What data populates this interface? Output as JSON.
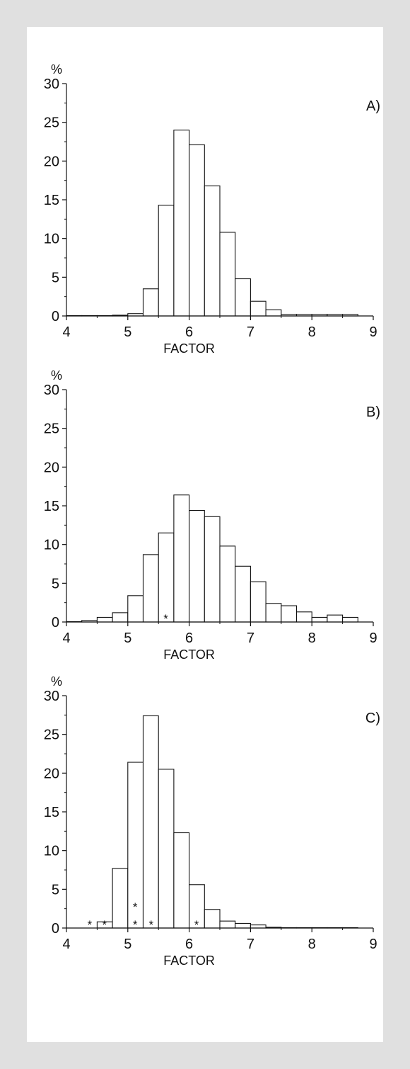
{
  "chart_data": [
    {
      "type": "bar",
      "panel_label": "A)",
      "y_unit_label": "%",
      "xlabel": "FACTOR",
      "xlim": [
        4,
        9
      ],
      "ylim": [
        0,
        30
      ],
      "xticks": [
        4,
        5,
        6,
        7,
        8,
        9
      ],
      "yticks": [
        0,
        5,
        10,
        15,
        20,
        25,
        30
      ],
      "bin_width": 0.25,
      "bins": [
        {
          "x0": 4.0,
          "value": 0.05
        },
        {
          "x0": 4.25,
          "value": 0.05
        },
        {
          "x0": 4.5,
          "value": 0.05
        },
        {
          "x0": 4.75,
          "value": 0.1
        },
        {
          "x0": 5.0,
          "value": 0.3
        },
        {
          "x0": 5.25,
          "value": 3.5
        },
        {
          "x0": 5.5,
          "value": 14.3
        },
        {
          "x0": 5.75,
          "value": 24.0
        },
        {
          "x0": 6.0,
          "value": 22.1
        },
        {
          "x0": 6.25,
          "value": 16.8
        },
        {
          "x0": 6.5,
          "value": 10.8
        },
        {
          "x0": 6.75,
          "value": 4.8
        },
        {
          "x0": 7.0,
          "value": 1.9
        },
        {
          "x0": 7.25,
          "value": 0.8
        },
        {
          "x0": 7.5,
          "value": 0.2
        },
        {
          "x0": 7.75,
          "value": 0.2
        },
        {
          "x0": 8.0,
          "value": 0.2
        },
        {
          "x0": 8.25,
          "value": 0.2
        },
        {
          "x0": 8.5,
          "value": 0.2
        }
      ],
      "markers": []
    },
    {
      "type": "bar",
      "panel_label": "B)",
      "y_unit_label": "%",
      "xlabel": "FACTOR",
      "xlim": [
        4,
        9
      ],
      "ylim": [
        0,
        30
      ],
      "xticks": [
        4,
        5,
        6,
        7,
        8,
        9
      ],
      "yticks": [
        0,
        5,
        10,
        15,
        20,
        25,
        30
      ],
      "bin_width": 0.25,
      "bins": [
        {
          "x0": 4.0,
          "value": 0.05
        },
        {
          "x0": 4.25,
          "value": 0.2
        },
        {
          "x0": 4.5,
          "value": 0.6
        },
        {
          "x0": 4.75,
          "value": 1.2
        },
        {
          "x0": 5.0,
          "value": 3.4
        },
        {
          "x0": 5.25,
          "value": 8.7
        },
        {
          "x0": 5.5,
          "value": 11.5
        },
        {
          "x0": 5.75,
          "value": 16.4
        },
        {
          "x0": 6.0,
          "value": 14.4
        },
        {
          "x0": 6.25,
          "value": 13.6
        },
        {
          "x0": 6.5,
          "value": 9.8
        },
        {
          "x0": 6.75,
          "value": 7.2
        },
        {
          "x0": 7.0,
          "value": 5.2
        },
        {
          "x0": 7.25,
          "value": 2.4
        },
        {
          "x0": 7.5,
          "value": 2.1
        },
        {
          "x0": 7.75,
          "value": 1.3
        },
        {
          "x0": 8.0,
          "value": 0.6
        },
        {
          "x0": 8.25,
          "value": 0.9
        },
        {
          "x0": 8.5,
          "value": 0.6
        }
      ],
      "markers": [
        {
          "x": 5.62,
          "y": 1.0,
          "text": "*"
        }
      ]
    },
    {
      "type": "bar",
      "panel_label": "C)",
      "y_unit_label": "%",
      "xlabel": "FACTOR",
      "xlim": [
        4,
        9
      ],
      "ylim": [
        0,
        30
      ],
      "xticks": [
        4,
        5,
        6,
        7,
        8,
        9
      ],
      "yticks": [
        0,
        5,
        10,
        15,
        20,
        25,
        30
      ],
      "bin_width": 0.25,
      "bins": [
        {
          "x0": 4.5,
          "value": 0.8
        },
        {
          "x0": 4.75,
          "value": 7.7
        },
        {
          "x0": 5.0,
          "value": 21.4
        },
        {
          "x0": 5.25,
          "value": 27.4
        },
        {
          "x0": 5.5,
          "value": 20.5
        },
        {
          "x0": 5.75,
          "value": 12.3
        },
        {
          "x0": 6.0,
          "value": 5.6
        },
        {
          "x0": 6.25,
          "value": 2.4
        },
        {
          "x0": 6.5,
          "value": 0.9
        },
        {
          "x0": 6.75,
          "value": 0.6
        },
        {
          "x0": 7.0,
          "value": 0.4
        },
        {
          "x0": 7.25,
          "value": 0.1
        },
        {
          "x0": 7.5,
          "value": 0.05
        },
        {
          "x0": 7.75,
          "value": 0.05
        },
        {
          "x0": 8.0,
          "value": 0.05
        },
        {
          "x0": 8.25,
          "value": 0.05
        },
        {
          "x0": 8.5,
          "value": 0.05
        }
      ],
      "markers": [
        {
          "x": 4.38,
          "y": 1.0,
          "text": "*"
        },
        {
          "x": 4.62,
          "y": 1.0,
          "text": "*"
        },
        {
          "x": 5.12,
          "y": 1.0,
          "text": "*"
        },
        {
          "x": 5.12,
          "y": 3.3,
          "text": "*"
        },
        {
          "x": 5.38,
          "y": 1.0,
          "text": "*"
        },
        {
          "x": 6.12,
          "y": 1.0,
          "text": "*"
        }
      ]
    }
  ]
}
